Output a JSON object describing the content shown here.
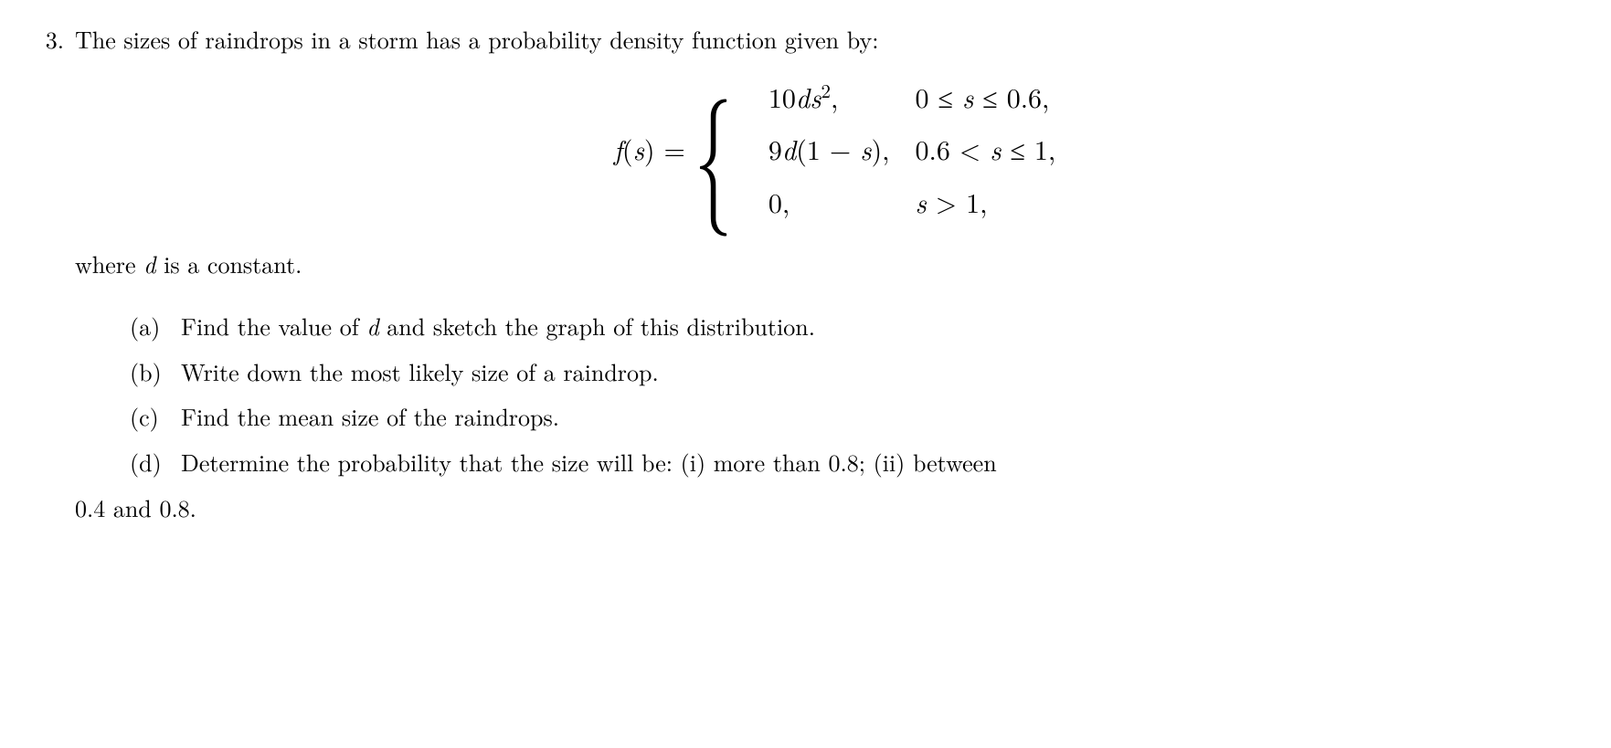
{
  "problem": {
    "number": "3.",
    "intro": "The sizes of raindrops in a storm has a probability density function given by:",
    "eq_lhs_html": "<span class=\"mi\">f</span>(<span class=\"mi\">s</span>) =",
    "cases": [
      {
        "expr_html": "10<span class=\"mi\">d</span><span class=\"mi\">s</span><sup>2</sup>,",
        "cond_html": "0 &le; <span class=\"mi\">s</span> &le; 0.6,"
      },
      {
        "expr_html": "9<span class=\"mi\">d</span>(1 &minus; <span class=\"mi\">s</span>),",
        "cond_html": "0.6 &lt; <span class=\"mi\">s</span> &le; 1,"
      },
      {
        "expr_html": "0,",
        "cond_html": "<span class=\"mi\">s</span> &gt; 1,"
      }
    ],
    "where_html": "where <span class=\"mi\">d</span> is a constant.",
    "subparts": [
      {
        "label": "(a)",
        "text_html": "Find the value of <span class=\"mi\">d</span> and sketch the graph of this distribution."
      },
      {
        "label": "(b)",
        "text_html": "Write down the most likely size of a raindrop."
      },
      {
        "label": "(c)",
        "text_html": "Find the mean size of the raindrops."
      },
      {
        "label": "(d)",
        "text_html": "Determine the probability that the size will be: (i) more than 0.8; (ii) between"
      }
    ],
    "hang_text": "0.4 and 0.8."
  }
}
